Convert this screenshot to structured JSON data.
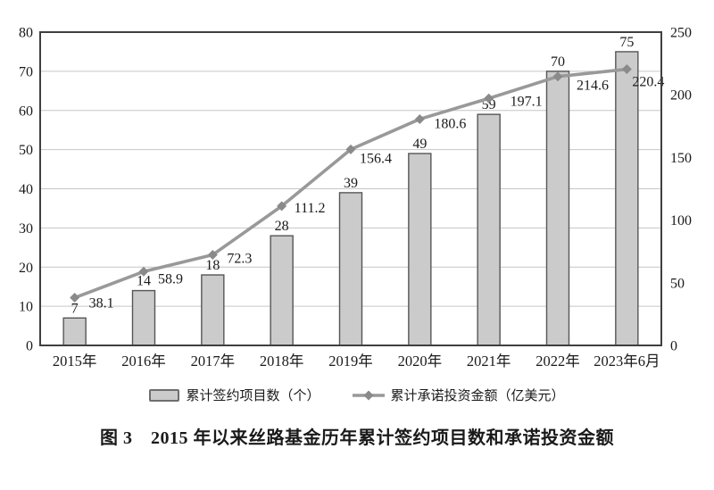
{
  "chart_data": {
    "type": "combo",
    "title": "图 3　2015 年以来丝路基金历年累计签约项目数和承诺投资金额",
    "categories": [
      "2015年",
      "2016年",
      "2017年",
      "2018年",
      "2019年",
      "2020年",
      "2021年",
      "2022年",
      "2023年6月"
    ],
    "series": [
      {
        "name": "累计签约项目数（个）",
        "type": "bar",
        "axis": "left",
        "values": [
          7,
          14,
          18,
          28,
          39,
          49,
          59,
          70,
          75
        ]
      },
      {
        "name": "累计承诺投资金额（亿美元）",
        "type": "line",
        "axis": "right",
        "values": [
          38.1,
          58.9,
          72.3,
          111.2,
          156.4,
          180.6,
          197.1,
          214.6,
          220.4
        ]
      }
    ],
    "left_axis": {
      "min": 0,
      "max": 80,
      "step": 10,
      "ticks": [
        0,
        10,
        20,
        30,
        40,
        50,
        60,
        70,
        80
      ]
    },
    "right_axis": {
      "min": 0,
      "max": 250,
      "step": 50,
      "ticks": [
        0,
        50,
        100,
        150,
        200,
        250
      ]
    },
    "grid": true,
    "legend_position": "bottom",
    "data_labels": true
  },
  "colors": {
    "bar_fill": "#cbcbcb",
    "bar_border": "#565656",
    "line": "#999999",
    "marker": "#8a8a8a",
    "grid": "#c6c6c6",
    "plot_border": "#3f3f3f",
    "text": "#1a1a1a"
  }
}
